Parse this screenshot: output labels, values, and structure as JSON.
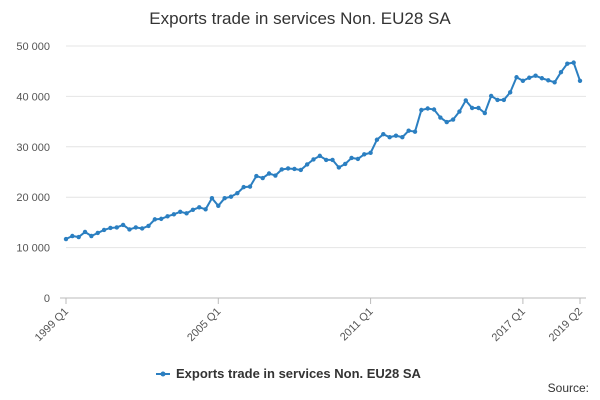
{
  "chart_data": {
    "type": "line",
    "title": "Exports trade in services Non. EU28 SA",
    "source": "Source:",
    "categories": [
      "1999 Q1",
      null,
      null,
      null,
      null,
      null,
      null,
      null,
      null,
      null,
      null,
      null,
      null,
      null,
      null,
      null,
      null,
      null,
      null,
      null,
      null,
      null,
      null,
      null,
      "2005 Q1",
      null,
      null,
      null,
      null,
      null,
      null,
      null,
      null,
      null,
      null,
      null,
      null,
      null,
      null,
      null,
      null,
      null,
      null,
      null,
      null,
      null,
      null,
      null,
      "2011 Q1",
      null,
      null,
      null,
      null,
      null,
      null,
      null,
      null,
      null,
      null,
      null,
      null,
      null,
      null,
      null,
      null,
      null,
      null,
      null,
      null,
      null,
      null,
      null,
      "2017 Q1",
      null,
      null,
      null,
      null,
      null,
      null,
      null,
      null,
      "2019 Q2"
    ],
    "series": [
      {
        "name": "Exports trade in services Non. EU28 SA",
        "color": "#2b7fc1",
        "values": [
          11700,
          12300,
          12100,
          13100,
          12300,
          12900,
          13500,
          13900,
          14000,
          14500,
          13600,
          14000,
          13800,
          14300,
          15600,
          15700,
          16200,
          16600,
          17100,
          16800,
          17500,
          18000,
          17600,
          19800,
          18300,
          19800,
          20100,
          20800,
          22000,
          22100,
          24200,
          23800,
          24700,
          24300,
          25500,
          25700,
          25600,
          25400,
          26500,
          27500,
          28200,
          27400,
          27400,
          25900,
          26600,
          27800,
          27600,
          28500,
          28800,
          31400,
          32500,
          31900,
          32200,
          31900,
          33200,
          33000,
          37300,
          37600,
          37400,
          35800,
          34900,
          35400,
          37000,
          39200,
          37700,
          37700,
          36700,
          40100,
          39300,
          39300,
          40800,
          43800,
          43100,
          43700,
          44100,
          43600,
          43200,
          42800,
          44800,
          46500,
          46700,
          43100
        ]
      }
    ],
    "ylim": [
      0,
      50000
    ],
    "yticks": [
      0,
      {
        "value": 10000,
        "label": "10 000"
      },
      {
        "value": 20000,
        "label": "20 000"
      },
      {
        "value": 30000,
        "label": "30 000"
      },
      {
        "value": 40000,
        "label": "40 000"
      },
      {
        "value": 50000,
        "label": "50 000"
      }
    ],
    "grid": true
  }
}
